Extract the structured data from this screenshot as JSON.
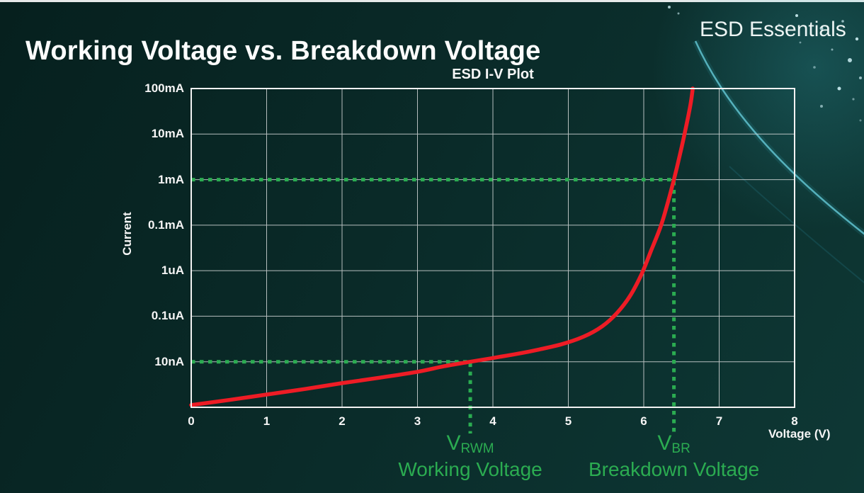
{
  "page": {
    "title": "Working Voltage vs. Breakdown Voltage",
    "brand": "ESD Essentials"
  },
  "colors": {
    "background_dark": "#06201e",
    "background_light": "#0e3835",
    "accent_green": "#2bac51",
    "curve_red": "#ee1c25",
    "grid_line": "#c9cfcf",
    "plot_border": "#f2f2f2",
    "text_white": "#ffffff",
    "streak_teal": "#65cbd8"
  },
  "chart_data": {
    "type": "line",
    "title": "ESD I-V Plot",
    "xlabel": "Voltage (V)",
    "ylabel": "Current",
    "xlim": [
      0,
      8
    ],
    "grid": true,
    "x_ticks": [
      "0",
      "1",
      "2",
      "3",
      "4",
      "5",
      "6",
      "7",
      "8"
    ],
    "y_ticks": [
      "100mA",
      "10mA",
      "1mA",
      "0.1mA",
      "1uA",
      "0.1uA",
      "10nA"
    ],
    "y_scale_note": "log-style ordinal axis; y point values are tick-row units from the top (0 = 100mA row, 2 = 1mA, 6 = 10nA, 7 = unlabeled bottom axis)",
    "series": [
      {
        "name": "ESD device I-V curve",
        "color": "#ee1c25",
        "points": [
          [
            0,
            6.95
          ],
          [
            0.5,
            6.84
          ],
          [
            1,
            6.72
          ],
          [
            1.5,
            6.6
          ],
          [
            2,
            6.47
          ],
          [
            2.5,
            6.35
          ],
          [
            3,
            6.22
          ],
          [
            3.35,
            6.1
          ],
          [
            3.7,
            6.0
          ],
          [
            4.1,
            5.89
          ],
          [
            4.5,
            5.77
          ],
          [
            4.9,
            5.62
          ],
          [
            5.2,
            5.45
          ],
          [
            5.45,
            5.22
          ],
          [
            5.65,
            4.92
          ],
          [
            5.82,
            4.55
          ],
          [
            5.97,
            4.08
          ],
          [
            6.1,
            3.55
          ],
          [
            6.22,
            3.05
          ],
          [
            6.3,
            2.62
          ],
          [
            6.4,
            2.0
          ],
          [
            6.48,
            1.45
          ],
          [
            6.56,
            0.85
          ],
          [
            6.62,
            0.35
          ],
          [
            6.65,
            0.0
          ]
        ]
      }
    ],
    "markers": [
      {
        "id": "v_rwm",
        "voltage": 3.7,
        "current": "10nA",
        "row": 6,
        "symbol": "V",
        "subscript": "RWM",
        "caption": "Working Voltage",
        "color": "#2bac51"
      },
      {
        "id": "v_br",
        "voltage": 6.4,
        "current": "1mA",
        "row": 2,
        "symbol": "V",
        "subscript": "BR",
        "caption": "Breakdown Voltage",
        "color": "#2bac51"
      }
    ]
  }
}
